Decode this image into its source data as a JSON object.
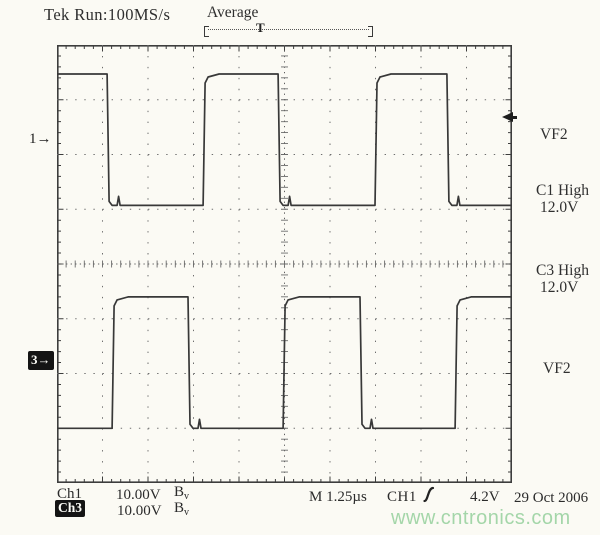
{
  "header": {
    "status": "Tek Run:100MS/s",
    "mode": "Average",
    "trigger_marker": "T"
  },
  "markers": {
    "ch1": "1→",
    "ch3": "3→"
  },
  "side_panel": {
    "vf2_top": "VF2",
    "c1_high_label": "C1 High",
    "c1_high_value": "12.0V",
    "c3_high_label": "C3 High",
    "c3_high_value": "12.0V",
    "vf2_bottom": "VF2"
  },
  "status_bar": {
    "ch1_label": "Ch1",
    "ch1_scale": "10.00V",
    "ch1_bw": "B",
    "ch1_bw_sub": "v",
    "ch3_label": "Ch3",
    "ch3_scale": "10.00V",
    "ch3_bw": "B",
    "ch3_bw_sub": "v",
    "timebase": "M 1.25µs",
    "trigger_source": "CH1",
    "trigger_level": "4.2V",
    "date": "29 Oct 2006"
  },
  "watermark": "www.cntronics.com",
  "colors": {
    "trace": "#383838",
    "grid_dots": "#6e6e6e",
    "watermark_green": "#a4d6a9",
    "inverse_badge": "#141414"
  },
  "chart_data": {
    "type": "line",
    "title": "Oscilloscope traces: complementary VF2 gate-drive square waves",
    "x_unit": "divisions",
    "x_range_div": [
      0,
      10
    ],
    "y_divisions": 8,
    "timebase_per_div_us": 1.25,
    "period_us": 4.67,
    "grid": "dotted major divisions, center crosshair with minor ticks",
    "series": [
      {
        "name": "Ch1 (VF2)",
        "volts_per_div": 10,
        "ground_div": 1.73,
        "high_v": 12.0,
        "low_v": -12.0,
        "initial_level": "high",
        "edges": [
          {
            "x_div": 1.1,
            "type": "fall"
          },
          {
            "x_div": 3.21,
            "type": "rise"
          },
          {
            "x_div": 4.86,
            "type": "fall"
          },
          {
            "x_div": 6.99,
            "type": "rise"
          },
          {
            "x_div": 8.57,
            "type": "fall"
          }
        ]
      },
      {
        "name": "Ch3 (VF2)",
        "volts_per_div": 10,
        "ground_div": 5.8,
        "high_v": 12.0,
        "low_v": -12.0,
        "initial_level": "low",
        "edges": [
          {
            "x_div": 1.21,
            "type": "rise"
          },
          {
            "x_div": 2.88,
            "type": "fall"
          },
          {
            "x_div": 4.97,
            "type": "rise"
          },
          {
            "x_div": 6.66,
            "type": "fall"
          },
          {
            "x_div": 8.75,
            "type": "rise"
          }
        ]
      }
    ]
  }
}
